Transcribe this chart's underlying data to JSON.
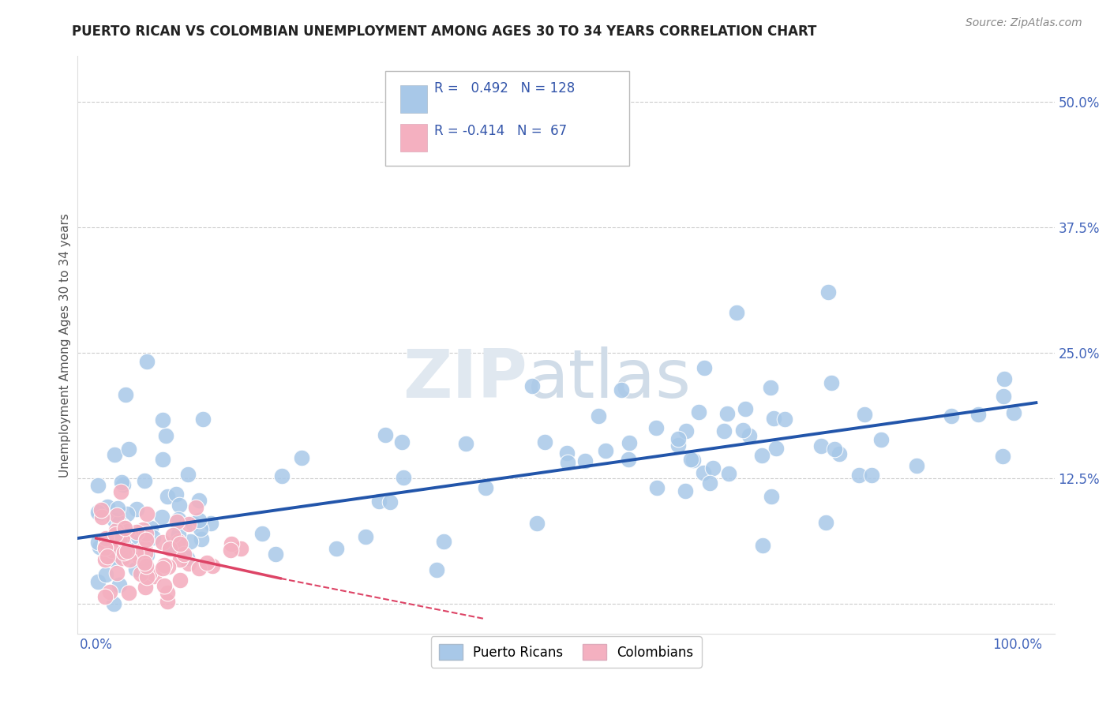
{
  "title": "PUERTO RICAN VS COLOMBIAN UNEMPLOYMENT AMONG AGES 30 TO 34 YEARS CORRELATION CHART",
  "source": "Source: ZipAtlas.com",
  "ylabel": "Unemployment Among Ages 30 to 34 years",
  "background_color": "#ffffff",
  "grid_color": "#cccccc",
  "watermark_zip": "ZIP",
  "watermark_atlas": "atlas",
  "blue_color": "#a8c8e8",
  "blue_edge": "#7aaac8",
  "pink_color": "#f4b0c0",
  "pink_edge": "#e080a0",
  "blue_line_color": "#2255aa",
  "pink_line_color": "#dd4466",
  "legend_R1": " 0.492",
  "legend_N1": "128",
  "legend_R2": "-0.414",
  "legend_N2": " 67",
  "label1": "Puerto Ricans",
  "label2": "Colombians",
  "title_fontsize": 12,
  "source_fontsize": 10,
  "tick_fontsize": 12,
  "legend_fontsize": 12,
  "ylabel_fontsize": 11
}
